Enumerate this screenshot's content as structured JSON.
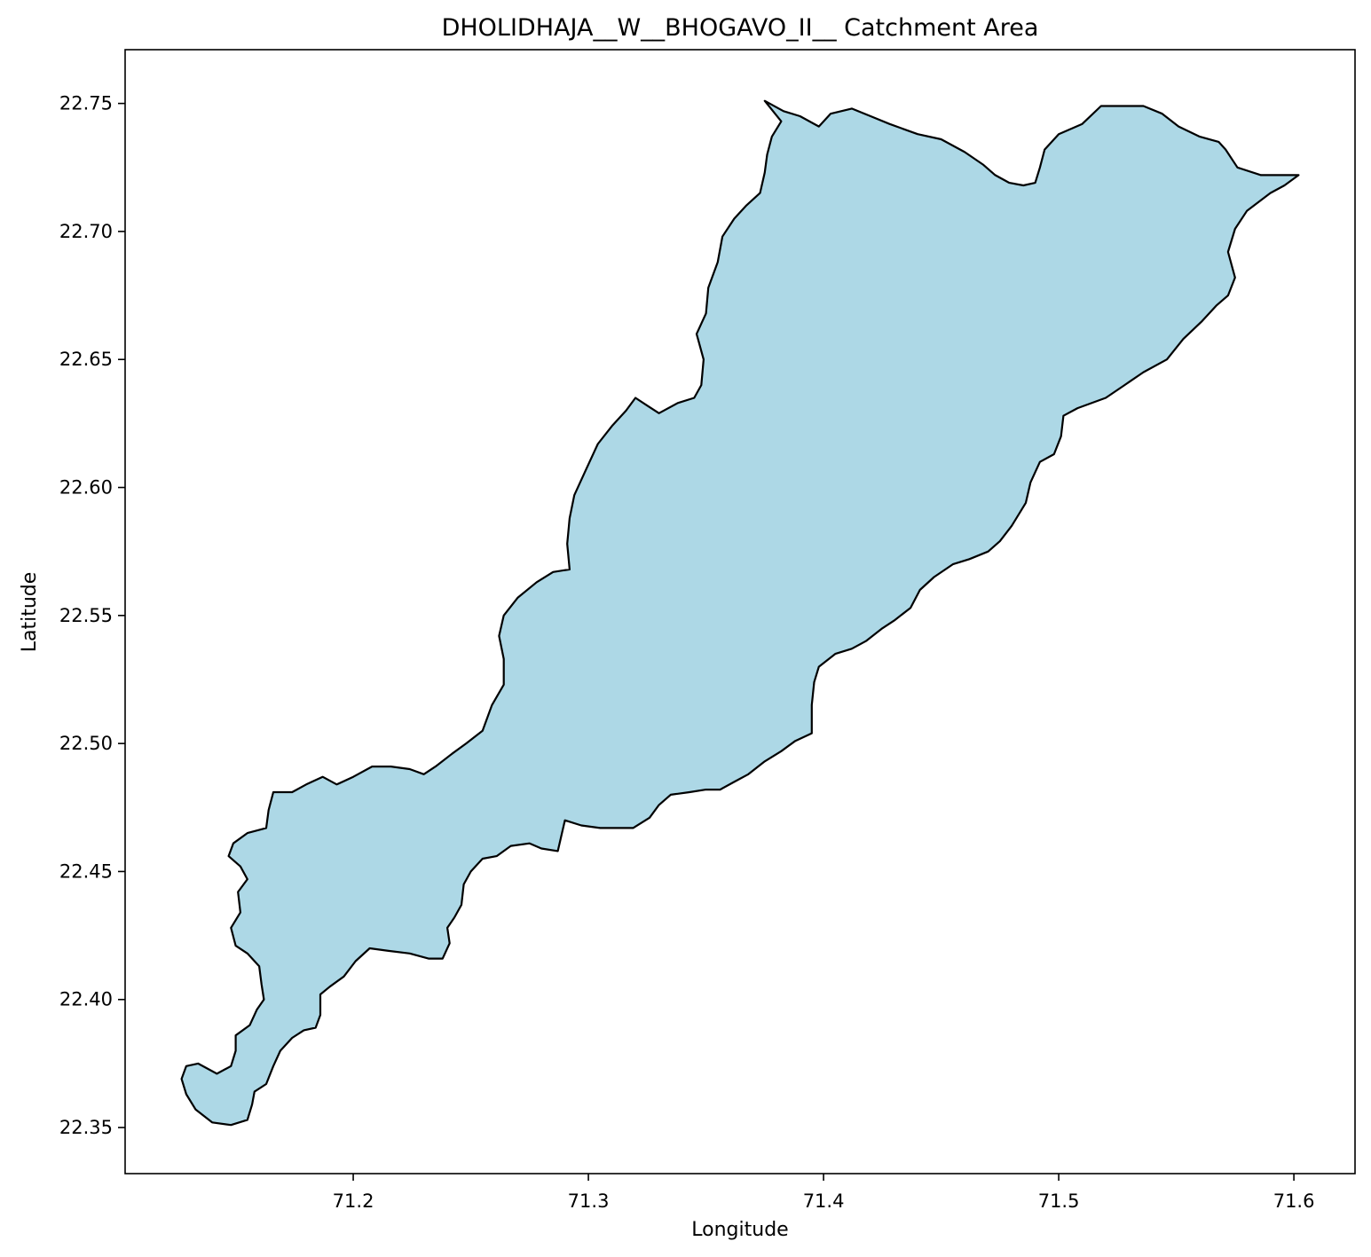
{
  "figure": {
    "title": "DHOLIDHAJA__W__BHOGAVO_II__ Catchment Area"
  },
  "chart_data": {
    "type": "area",
    "title": "DHOLIDHAJA__W__BHOGAVO_II__ Catchment Area",
    "xlabel": "Longitude",
    "ylabel": "Latitude",
    "xlim": [
      71.103,
      71.626
    ],
    "ylim": [
      22.332,
      22.771
    ],
    "x_ticks": [
      71.2,
      71.3,
      71.4,
      71.5,
      71.6
    ],
    "x_tick_labels": [
      "71.2",
      "71.3",
      "71.4",
      "71.5",
      "71.6"
    ],
    "y_ticks": [
      22.35,
      22.4,
      22.45,
      22.5,
      22.55,
      22.6,
      22.65,
      22.7,
      22.75
    ],
    "y_tick_labels": [
      "22.35",
      "22.40",
      "22.45",
      "22.50",
      "22.55",
      "22.60",
      "22.65",
      "22.70",
      "22.75"
    ],
    "grid": false,
    "fill_color": "#add8e6",
    "edge_color": "#000000",
    "boundary": [
      [
        71.375,
        22.751
      ],
      [
        71.383,
        22.747
      ],
      [
        71.39,
        22.745
      ],
      [
        71.398,
        22.741
      ],
      [
        71.403,
        22.746
      ],
      [
        71.412,
        22.748
      ],
      [
        71.42,
        22.745
      ],
      [
        71.428,
        22.742
      ],
      [
        71.44,
        22.738
      ],
      [
        71.45,
        22.736
      ],
      [
        71.46,
        22.731
      ],
      [
        71.468,
        22.726
      ],
      [
        71.473,
        22.722
      ],
      [
        71.479,
        22.719
      ],
      [
        71.485,
        22.718
      ],
      [
        71.49,
        22.719
      ],
      [
        71.492,
        22.725
      ],
      [
        71.494,
        22.732
      ],
      [
        71.5,
        22.738
      ],
      [
        71.51,
        22.742
      ],
      [
        71.518,
        22.749
      ],
      [
        71.527,
        22.749
      ],
      [
        71.536,
        22.749
      ],
      [
        71.544,
        22.746
      ],
      [
        71.551,
        22.741
      ],
      [
        71.56,
        22.737
      ],
      [
        71.568,
        22.735
      ],
      [
        71.571,
        22.732
      ],
      [
        71.576,
        22.725
      ],
      [
        71.586,
        22.722
      ],
      [
        71.602,
        22.722
      ],
      [
        71.596,
        22.718
      ],
      [
        71.59,
        22.715
      ],
      [
        71.58,
        22.708
      ],
      [
        71.575,
        22.701
      ],
      [
        71.572,
        22.692
      ],
      [
        71.575,
        22.682
      ],
      [
        71.572,
        22.675
      ],
      [
        71.567,
        22.671
      ],
      [
        71.561,
        22.665
      ],
      [
        71.553,
        22.658
      ],
      [
        71.546,
        22.65
      ],
      [
        71.536,
        22.645
      ],
      [
        71.528,
        22.64
      ],
      [
        71.52,
        22.635
      ],
      [
        71.508,
        22.631
      ],
      [
        71.502,
        22.628
      ],
      [
        71.501,
        22.62
      ],
      [
        71.498,
        22.613
      ],
      [
        71.492,
        22.61
      ],
      [
        71.488,
        22.602
      ],
      [
        71.486,
        22.594
      ],
      [
        71.48,
        22.585
      ],
      [
        71.475,
        22.579
      ],
      [
        71.47,
        22.575
      ],
      [
        71.462,
        22.572
      ],
      [
        71.455,
        22.57
      ],
      [
        71.447,
        22.565
      ],
      [
        71.441,
        22.56
      ],
      [
        71.437,
        22.553
      ],
      [
        71.43,
        22.548
      ],
      [
        71.425,
        22.545
      ],
      [
        71.418,
        22.54
      ],
      [
        71.412,
        22.537
      ],
      [
        71.405,
        22.535
      ],
      [
        71.398,
        22.53
      ],
      [
        71.396,
        22.524
      ],
      [
        71.395,
        22.515
      ],
      [
        71.395,
        22.504
      ],
      [
        71.388,
        22.501
      ],
      [
        71.382,
        22.497
      ],
      [
        71.375,
        22.493
      ],
      [
        71.368,
        22.488
      ],
      [
        71.362,
        22.485
      ],
      [
        71.356,
        22.482
      ],
      [
        71.35,
        22.482
      ],
      [
        71.343,
        22.481
      ],
      [
        71.335,
        22.48
      ],
      [
        71.33,
        22.476
      ],
      [
        71.326,
        22.471
      ],
      [
        71.319,
        22.467
      ],
      [
        71.312,
        22.467
      ],
      [
        71.305,
        22.467
      ],
      [
        71.297,
        22.468
      ],
      [
        71.29,
        22.47
      ],
      [
        71.288,
        22.462
      ],
      [
        71.287,
        22.458
      ],
      [
        71.28,
        22.459
      ],
      [
        71.275,
        22.461
      ],
      [
        71.267,
        22.46
      ],
      [
        71.261,
        22.456
      ],
      [
        71.255,
        22.455
      ],
      [
        71.25,
        22.45
      ],
      [
        71.247,
        22.445
      ],
      [
        71.246,
        22.437
      ],
      [
        71.243,
        22.432
      ],
      [
        71.24,
        22.428
      ],
      [
        71.241,
        22.422
      ],
      [
        71.238,
        22.416
      ],
      [
        71.232,
        22.416
      ],
      [
        71.224,
        22.418
      ],
      [
        71.215,
        22.419
      ],
      [
        71.207,
        22.42
      ],
      [
        71.201,
        22.415
      ],
      [
        71.196,
        22.409
      ],
      [
        71.19,
        22.405
      ],
      [
        71.186,
        22.402
      ],
      [
        71.186,
        22.394
      ],
      [
        71.184,
        22.389
      ],
      [
        71.179,
        22.388
      ],
      [
        71.174,
        22.385
      ],
      [
        71.169,
        22.38
      ],
      [
        71.166,
        22.374
      ],
      [
        71.163,
        22.367
      ],
      [
        71.158,
        22.364
      ],
      [
        71.157,
        22.359
      ],
      [
        71.155,
        22.353
      ],
      [
        71.148,
        22.351
      ],
      [
        71.14,
        22.352
      ],
      [
        71.133,
        22.357
      ],
      [
        71.129,
        22.363
      ],
      [
        71.127,
        22.369
      ],
      [
        71.129,
        22.374
      ],
      [
        71.134,
        22.375
      ],
      [
        71.142,
        22.371
      ],
      [
        71.148,
        22.374
      ],
      [
        71.15,
        22.38
      ],
      [
        71.15,
        22.386
      ],
      [
        71.156,
        22.39
      ],
      [
        71.159,
        22.396
      ],
      [
        71.162,
        22.4
      ],
      [
        71.161,
        22.406
      ],
      [
        71.16,
        22.413
      ],
      [
        71.155,
        22.418
      ],
      [
        71.15,
        22.421
      ],
      [
        71.148,
        22.428
      ],
      [
        71.152,
        22.434
      ],
      [
        71.151,
        22.442
      ],
      [
        71.155,
        22.447
      ],
      [
        71.152,
        22.452
      ],
      [
        71.147,
        22.456
      ],
      [
        71.149,
        22.461
      ],
      [
        71.155,
        22.465
      ],
      [
        71.163,
        22.467
      ],
      [
        71.164,
        22.474
      ],
      [
        71.166,
        22.481
      ],
      [
        71.174,
        22.481
      ],
      [
        71.18,
        22.484
      ],
      [
        71.187,
        22.487
      ],
      [
        71.193,
        22.484
      ],
      [
        71.2,
        22.487
      ],
      [
        71.208,
        22.491
      ],
      [
        71.216,
        22.491
      ],
      [
        71.224,
        22.49
      ],
      [
        71.23,
        22.488
      ],
      [
        71.235,
        22.491
      ],
      [
        71.242,
        22.496
      ],
      [
        71.248,
        22.5
      ],
      [
        71.255,
        22.505
      ],
      [
        71.259,
        22.515
      ],
      [
        71.264,
        22.523
      ],
      [
        71.264,
        22.533
      ],
      [
        71.262,
        22.542
      ],
      [
        71.264,
        22.55
      ],
      [
        71.27,
        22.557
      ],
      [
        71.278,
        22.563
      ],
      [
        71.285,
        22.567
      ],
      [
        71.292,
        22.568
      ],
      [
        71.291,
        22.578
      ],
      [
        71.292,
        22.588
      ],
      [
        71.294,
        22.597
      ],
      [
        71.299,
        22.607
      ],
      [
        71.304,
        22.617
      ],
      [
        71.31,
        22.624
      ],
      [
        71.316,
        22.63
      ],
      [
        71.32,
        22.635
      ],
      [
        71.325,
        22.632
      ],
      [
        71.33,
        22.629
      ],
      [
        71.338,
        22.633
      ],
      [
        71.345,
        22.635
      ],
      [
        71.348,
        22.64
      ],
      [
        71.349,
        22.65
      ],
      [
        71.346,
        22.66
      ],
      [
        71.35,
        22.668
      ],
      [
        71.351,
        22.678
      ],
      [
        71.355,
        22.688
      ],
      [
        71.357,
        22.698
      ],
      [
        71.362,
        22.705
      ],
      [
        71.367,
        22.71
      ],
      [
        71.373,
        22.715
      ],
      [
        71.375,
        22.723
      ],
      [
        71.376,
        22.73
      ],
      [
        71.378,
        22.737
      ],
      [
        71.382,
        22.743
      ],
      [
        71.375,
        22.751
      ]
    ]
  }
}
